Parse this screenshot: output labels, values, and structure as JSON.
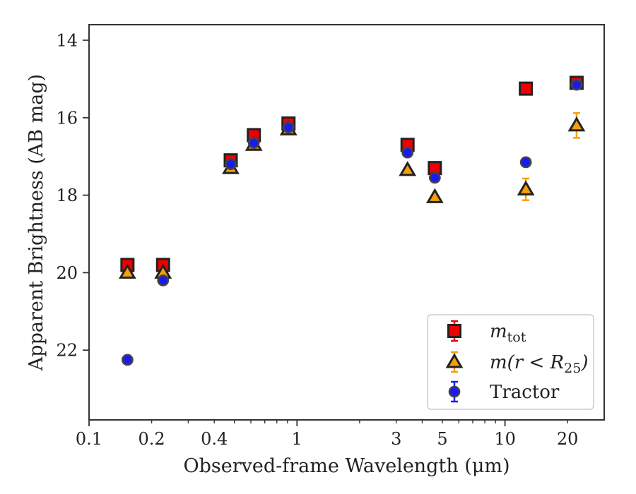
{
  "chart_data": {
    "type": "scatter",
    "xlabel": "Observed-frame Wavelength (μm)",
    "ylabel": "Apparent Brightness (AB mag)",
    "xscale": "log",
    "xlim": [
      0.1,
      30
    ],
    "ylim": [
      23.8,
      13.6
    ],
    "y_inverted": true,
    "grid": false,
    "legend_position": "bottom-right",
    "xticks": [
      {
        "value": 0.1,
        "label": "0.1"
      },
      {
        "value": 0.2,
        "label": "0.2"
      },
      {
        "value": 0.4,
        "label": "0.4"
      },
      {
        "value": 1,
        "label": "1"
      },
      {
        "value": 3,
        "label": "3"
      },
      {
        "value": 5,
        "label": "5"
      },
      {
        "value": 10,
        "label": "10"
      },
      {
        "value": 20,
        "label": "20"
      }
    ],
    "yticks": [
      {
        "value": 14,
        "label": "14"
      },
      {
        "value": 16,
        "label": "16"
      },
      {
        "value": 18,
        "label": "18"
      },
      {
        "value": 20,
        "label": "20"
      },
      {
        "value": 22,
        "label": "22"
      }
    ],
    "series": [
      {
        "name": "m_tot",
        "legend_label": {
          "symbol": "m",
          "subscript": "tot"
        },
        "marker": "square",
        "color": "#ee0000",
        "edge_color": "#222222",
        "errorbar_color": "#ee0000",
        "points": [
          {
            "x": 0.153,
            "y": 19.8,
            "err": 0.08
          },
          {
            "x": 0.227,
            "y": 19.8,
            "err": 0.08
          },
          {
            "x": 0.48,
            "y": 17.1,
            "err": 0.08
          },
          {
            "x": 0.62,
            "y": 16.45,
            "err": 0.08
          },
          {
            "x": 0.91,
            "y": 16.15,
            "err": 0.08
          },
          {
            "x": 3.4,
            "y": 16.7,
            "err": 0.08
          },
          {
            "x": 4.6,
            "y": 17.3,
            "err": 0.08
          },
          {
            "x": 12.6,
            "y": 15.25,
            "err": 0.06
          },
          {
            "x": 22.1,
            "y": 15.1,
            "err": 0.06
          }
        ]
      },
      {
        "name": "m(r<R_25)",
        "legend_label": {
          "text": "m(r < R",
          "subscript": "25",
          "close": ")"
        },
        "marker": "triangle",
        "color": "#f5a00a",
        "edge_color": "#222222",
        "errorbar_color": "#f5a00a",
        "points": [
          {
            "x": 0.153,
            "y": 20.0,
            "err": 0.05
          },
          {
            "x": 0.227,
            "y": 20.0,
            "err": 0.05
          },
          {
            "x": 0.48,
            "y": 17.3,
            "err": 0.05
          },
          {
            "x": 0.62,
            "y": 16.7,
            "err": 0.05
          },
          {
            "x": 0.91,
            "y": 16.3,
            "err": 0.05
          },
          {
            "x": 3.4,
            "y": 17.35,
            "err": 0.05
          },
          {
            "x": 4.6,
            "y": 18.05,
            "err": 0.05
          },
          {
            "x": 12.6,
            "y": 17.85,
            "err": 0.28
          },
          {
            "x": 22.1,
            "y": 16.2,
            "err": 0.32
          }
        ]
      },
      {
        "name": "Tractor",
        "legend_label": {
          "text": "Tractor"
        },
        "marker": "circle",
        "color": "#1a1aee",
        "edge_color": "#444444",
        "errorbar_color": "#1a1aee",
        "points": [
          {
            "x": 0.153,
            "y": 22.25,
            "err": 0.05
          },
          {
            "x": 0.227,
            "y": 20.2,
            "err": 0.05
          },
          {
            "x": 0.48,
            "y": 17.2,
            "err": 0.05
          },
          {
            "x": 0.62,
            "y": 16.65,
            "err": 0.05
          },
          {
            "x": 0.91,
            "y": 16.25,
            "err": 0.05
          },
          {
            "x": 3.4,
            "y": 16.9,
            "err": 0.05
          },
          {
            "x": 4.6,
            "y": 17.55,
            "err": 0.05
          },
          {
            "x": 12.6,
            "y": 17.15,
            "err": 0.05
          },
          {
            "x": 22.1,
            "y": 15.15,
            "err": 0.05
          }
        ]
      }
    ]
  }
}
